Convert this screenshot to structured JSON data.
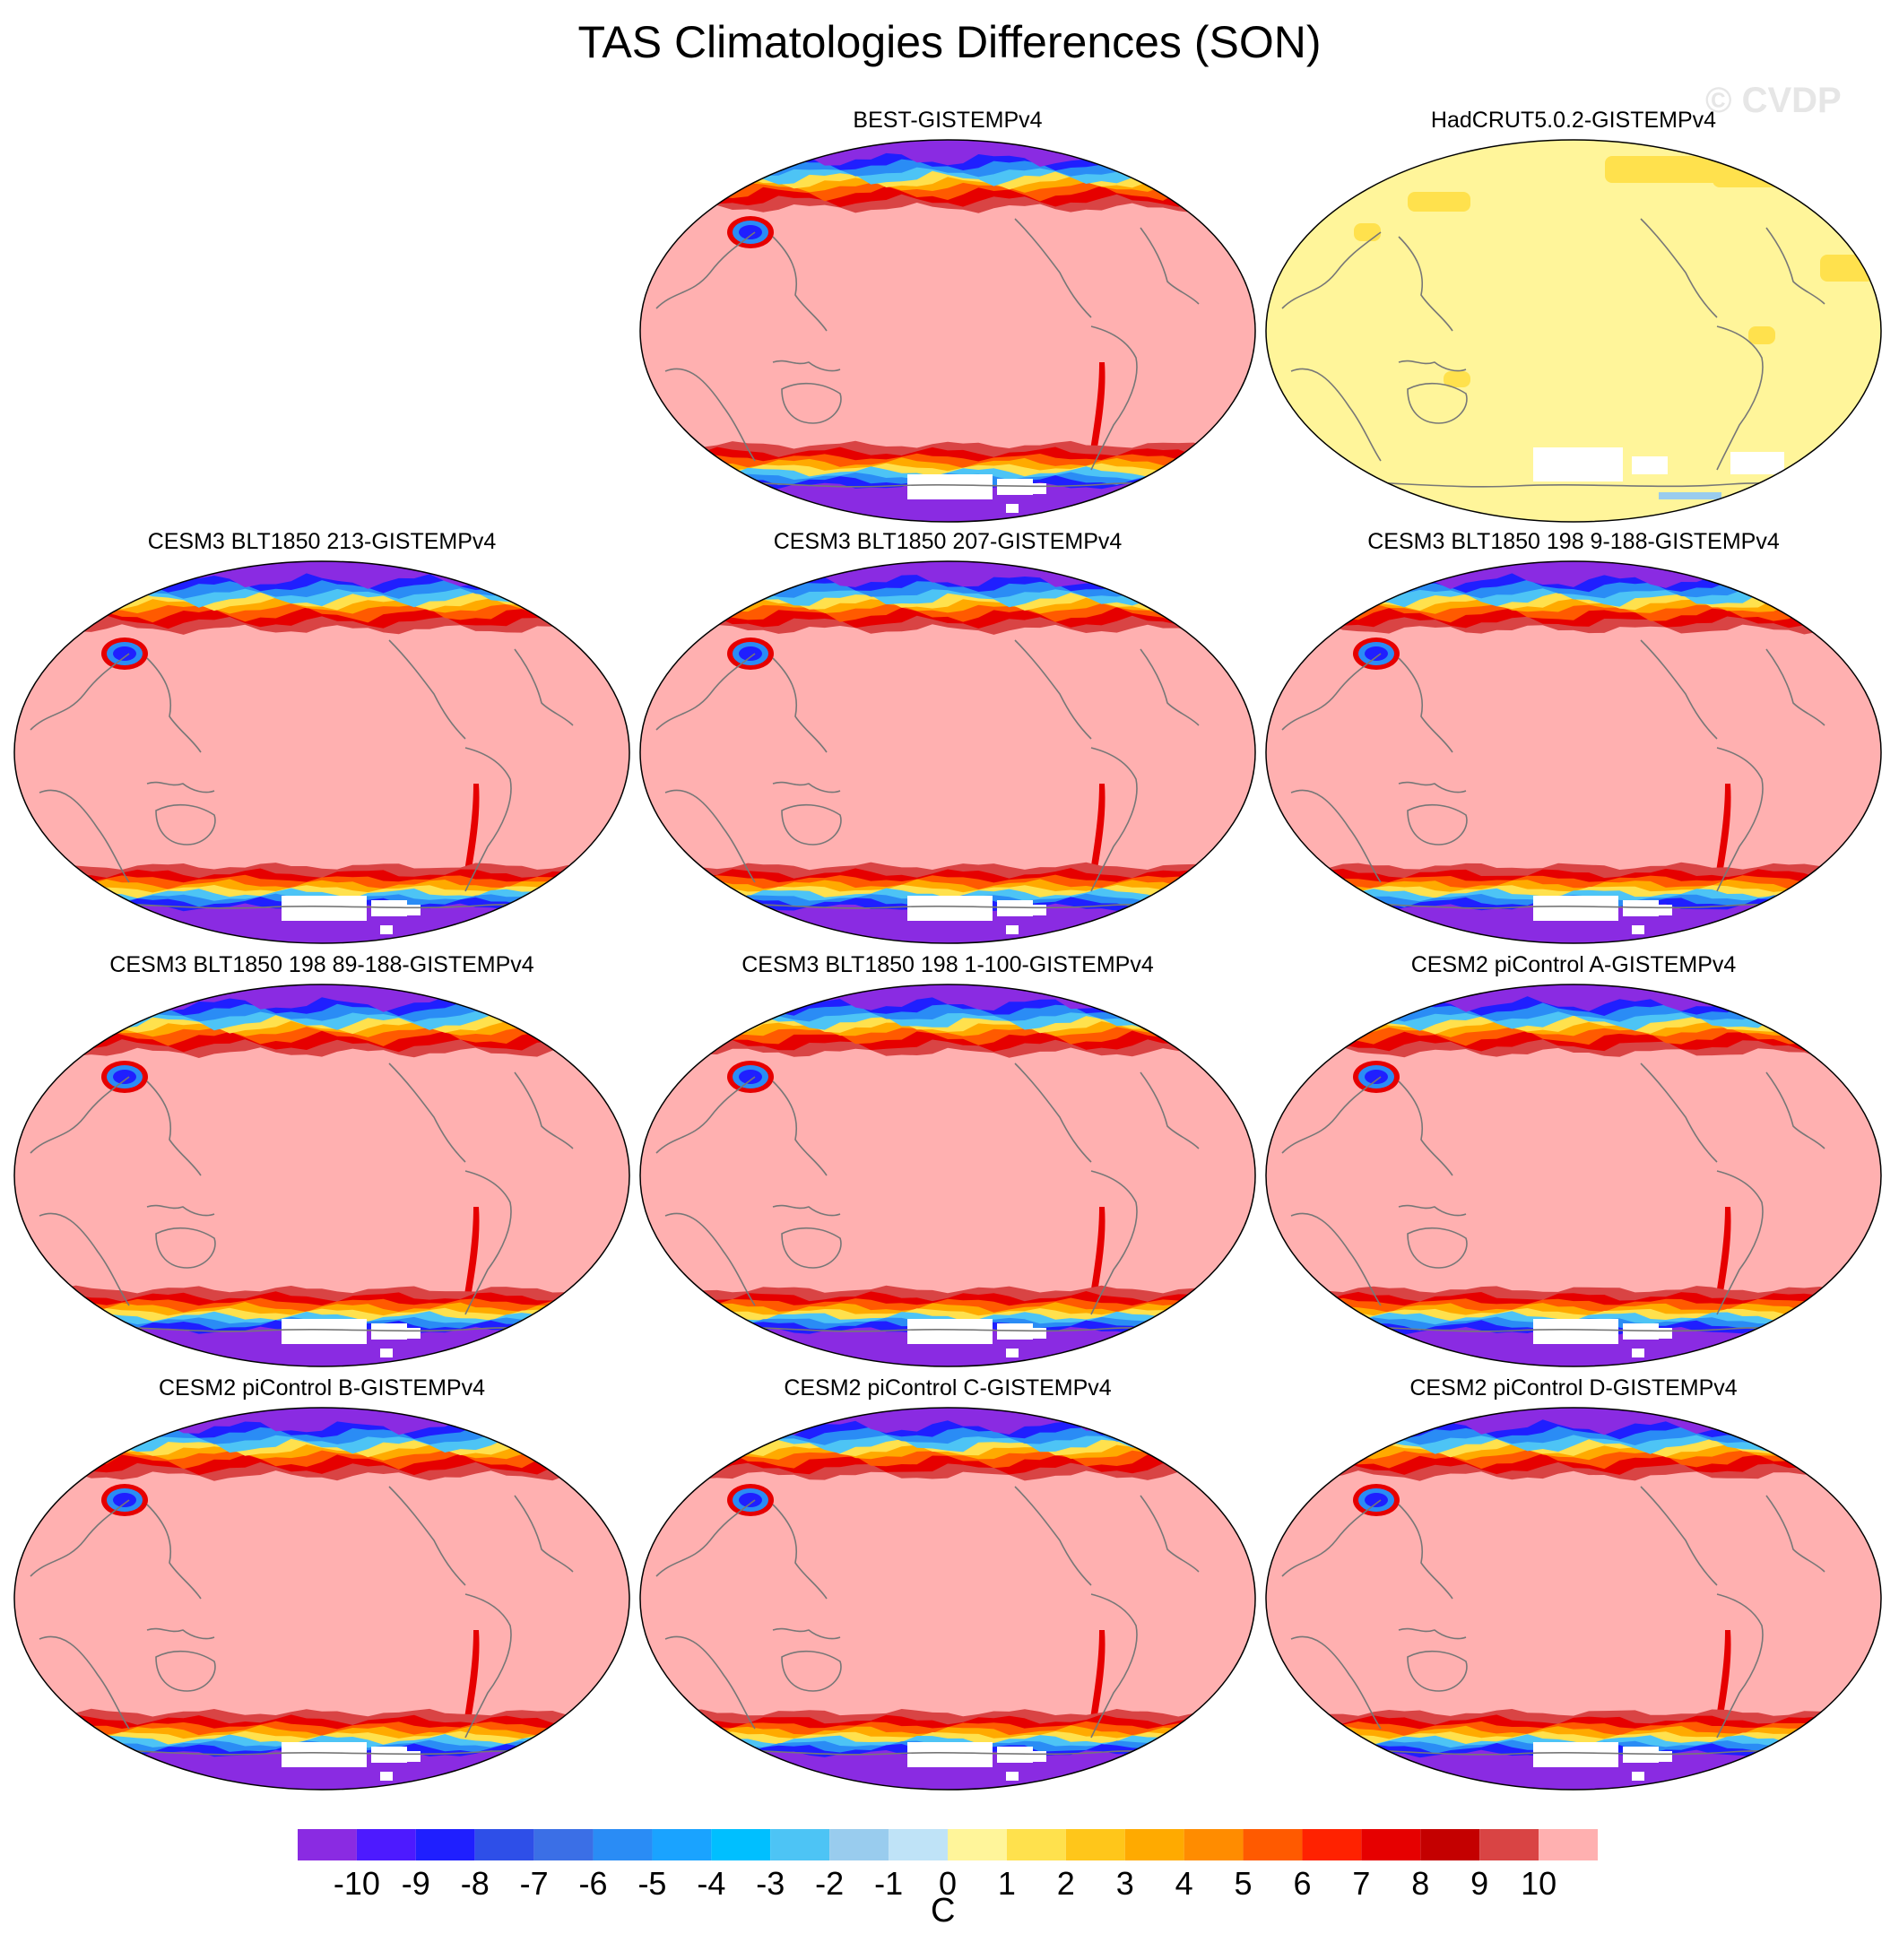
{
  "title": "TAS Climatologies Differences (SON)",
  "watermark": "© CVDP",
  "panels": [
    {
      "title": "BEST-GISTEMPv4",
      "pattern": "bias"
    },
    {
      "title": "HadCRUT5.0.2-GISTEMPv4",
      "pattern": "small"
    },
    {
      "title": "CESM3 BLT1850 213-GISTEMPv4",
      "pattern": "bias"
    },
    {
      "title": "CESM3 BLT1850 207-GISTEMPv4",
      "pattern": "bias"
    },
    {
      "title": "CESM3 BLT1850 198 9-188-GISTEMPv4",
      "pattern": "bias"
    },
    {
      "title": "CESM3 BLT1850 198 89-188-GISTEMPv4",
      "pattern": "bias"
    },
    {
      "title": "CESM3 BLT1850 198 1-100-GISTEMPv4",
      "pattern": "bias"
    },
    {
      "title": "CESM2 piControl A-GISTEMPv4",
      "pattern": "bias"
    },
    {
      "title": "CESM2 piControl B-GISTEMPv4",
      "pattern": "bias"
    },
    {
      "title": "CESM2 piControl C-GISTEMPv4",
      "pattern": "bias"
    },
    {
      "title": "CESM2 piControl D-GISTEMPv4",
      "pattern": "bias"
    }
  ],
  "colorbar": {
    "unit": "C",
    "ticks": [
      "-10",
      "-9",
      "-8",
      "-7",
      "-6",
      "-5",
      "-4",
      "-3",
      "-2",
      "-1",
      "0",
      "1",
      "2",
      "3",
      "4",
      "5",
      "6",
      "7",
      "8",
      "9",
      "10"
    ],
    "colors": [
      "#8a2be2",
      "#4d1aff",
      "#1f1fff",
      "#2e4fe8",
      "#3b6fe6",
      "#2a8cf5",
      "#1aa3ff",
      "#00bfff",
      "#4dc4f5",
      "#99ccee",
      "#bfe3f7",
      "#fff59a",
      "#ffe14d",
      "#ffc61a",
      "#ffaa00",
      "#ff8c00",
      "#ff5a00",
      "#ff2200",
      "#e60000",
      "#c40000",
      "#d94444",
      "#ffb0b0"
    ]
  }
}
